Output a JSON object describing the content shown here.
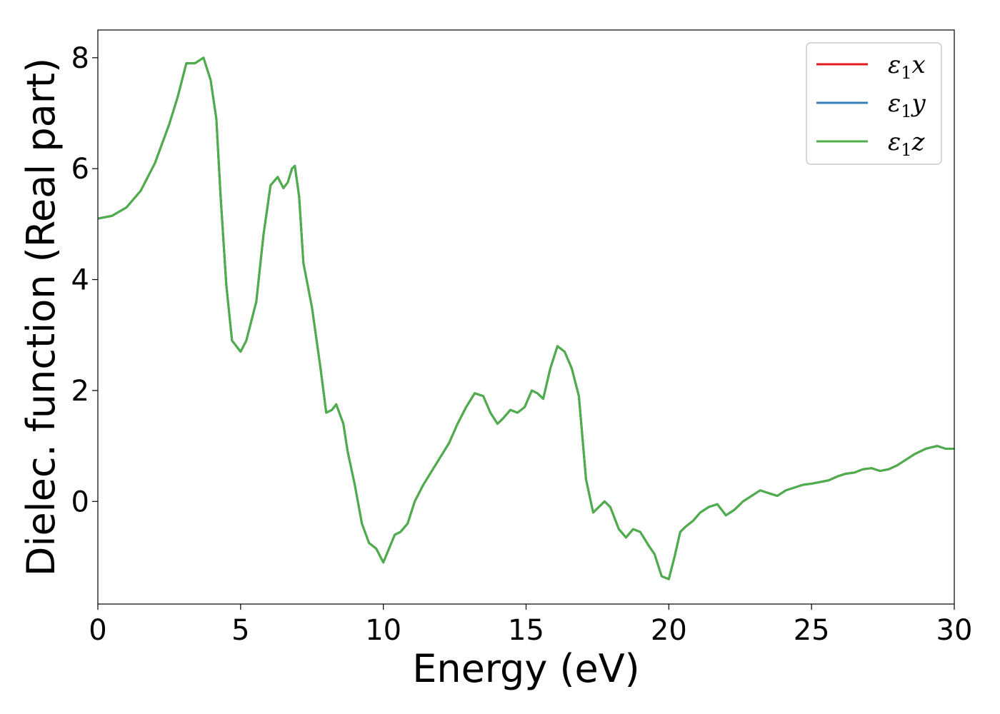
{
  "chart_data": {
    "type": "line",
    "title": "",
    "xlabel": "Energy (eV)",
    "ylabel": "Dielec. function (Real part)",
    "xlim": [
      0,
      30
    ],
    "ylim": [
      -1.85,
      8.5
    ],
    "xticks": [
      0,
      5,
      10,
      15,
      20,
      25,
      30
    ],
    "yticks": [
      0,
      2,
      4,
      6,
      8
    ],
    "grid": false,
    "legend_position": "top-right",
    "series": [
      {
        "name": "ε1x",
        "legend": {
          "base": "ε",
          "sub": "1",
          "suffix": "x"
        },
        "color": "#e41a1c",
        "x": [
          0,
          0.5,
          1,
          1.5,
          2,
          2.5,
          2.8,
          3.1,
          3.4,
          3.7,
          3.95,
          4.15,
          4.3,
          4.5,
          4.7,
          5.0,
          5.2,
          5.35,
          5.55,
          5.8,
          6.05,
          6.3,
          6.5,
          6.65,
          6.8,
          6.9,
          7.05,
          7.2,
          7.5,
          7.8,
          8.0,
          8.2,
          8.35,
          8.6,
          8.75,
          9.0,
          9.25,
          9.5,
          9.75,
          10.0,
          10.2,
          10.4,
          10.6,
          10.85,
          11.1,
          11.4,
          11.7,
          12.0,
          12.3,
          12.6,
          12.9,
          13.2,
          13.5,
          13.75,
          14.0,
          14.2,
          14.45,
          14.7,
          14.95,
          15.2,
          15.4,
          15.6,
          15.85,
          16.1,
          16.35,
          16.6,
          16.85,
          17.1,
          17.35,
          17.55,
          17.75,
          17.95,
          18.25,
          18.5,
          18.75,
          19.0,
          19.3,
          19.5,
          19.75,
          20.0,
          20.2,
          20.4,
          20.6,
          20.85,
          21.1,
          21.4,
          21.7,
          22.0,
          22.3,
          22.6,
          22.9,
          23.2,
          23.5,
          23.8,
          24.1,
          24.4,
          24.7,
          25.0,
          25.3,
          25.6,
          25.9,
          26.2,
          26.5,
          26.8,
          27.1,
          27.4,
          27.7,
          28.0,
          28.3,
          28.6,
          29.0,
          29.4,
          29.7,
          30.0
        ],
        "y": [
          5.1,
          5.15,
          5.3,
          5.6,
          6.1,
          6.8,
          7.3,
          7.9,
          7.9,
          8.0,
          7.6,
          6.9,
          5.5,
          3.9,
          2.9,
          2.7,
          2.9,
          3.2,
          3.6,
          4.8,
          5.7,
          5.85,
          5.65,
          5.75,
          6.0,
          6.05,
          5.5,
          4.3,
          3.5,
          2.4,
          1.6,
          1.65,
          1.75,
          1.4,
          0.9,
          0.3,
          -0.4,
          -0.75,
          -0.85,
          -1.1,
          -0.85,
          -0.6,
          -0.55,
          -0.4,
          0.0,
          0.3,
          0.55,
          0.8,
          1.05,
          1.4,
          1.7,
          1.95,
          1.9,
          1.6,
          1.4,
          1.5,
          1.65,
          1.6,
          1.7,
          2.0,
          1.95,
          1.85,
          2.4,
          2.8,
          2.7,
          2.4,
          1.9,
          0.4,
          -0.2,
          -0.1,
          0.0,
          -0.1,
          -0.5,
          -0.65,
          -0.5,
          -0.55,
          -0.8,
          -0.95,
          -1.35,
          -1.4,
          -1.0,
          -0.55,
          -0.45,
          -0.35,
          -0.2,
          -0.1,
          -0.05,
          -0.25,
          -0.15,
          0.0,
          0.1,
          0.2,
          0.15,
          0.1,
          0.2,
          0.25,
          0.3,
          0.32,
          0.35,
          0.38,
          0.45,
          0.5,
          0.52,
          0.58,
          0.6,
          0.55,
          0.58,
          0.65,
          0.75,
          0.85,
          0.95,
          1.0,
          0.95,
          0.95
        ]
      },
      {
        "name": "ε1y",
        "legend": {
          "base": "ε",
          "sub": "1",
          "suffix": "y"
        },
        "color": "#377eb8",
        "same_as": "ε1x"
      },
      {
        "name": "ε1z",
        "legend": {
          "base": "ε",
          "sub": "1",
          "suffix": "z"
        },
        "color": "#4daf4a",
        "same_as": "ε1x"
      }
    ]
  }
}
